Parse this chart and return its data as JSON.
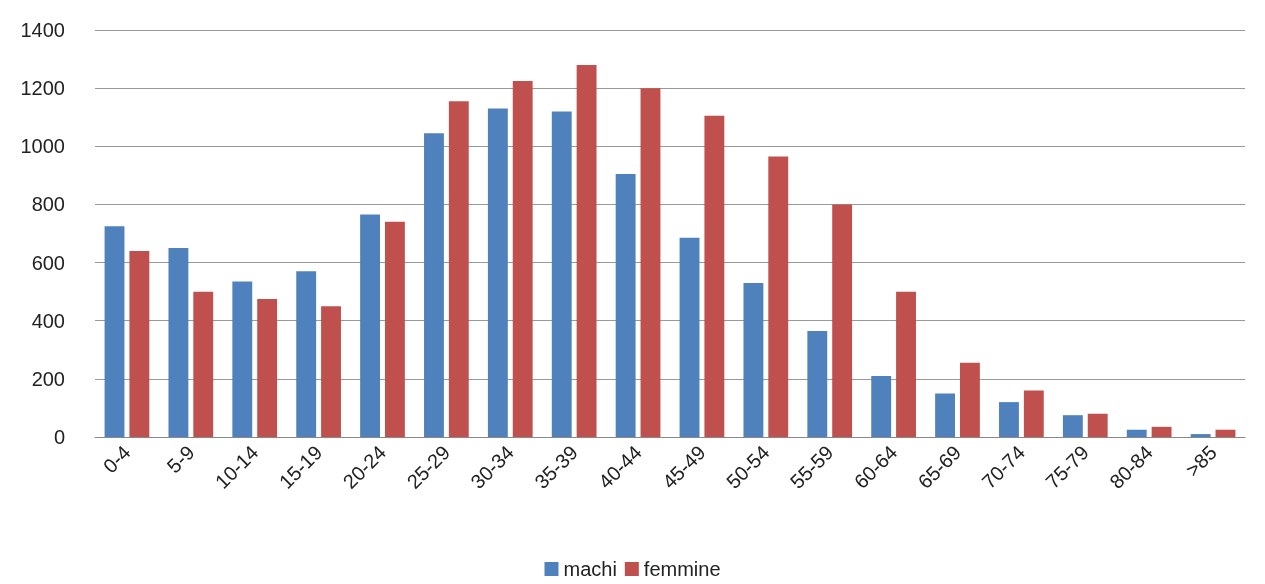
{
  "chart_data": {
    "type": "bar",
    "categories": [
      "0-4",
      "5-9",
      "10-14",
      "15-19",
      "20-24",
      "25-29",
      "30-34",
      "35-39",
      "40-44",
      "45-49",
      "50-54",
      "55-59",
      "60-64",
      "65-69",
      "70-74",
      "75-79",
      "80-84",
      ">85"
    ],
    "series": [
      {
        "name": "machi",
        "color": "#4f81bd",
        "values": [
          725,
          650,
          535,
          570,
          765,
          1045,
          1130,
          1120,
          905,
          685,
          530,
          365,
          210,
          150,
          120,
          75,
          25,
          10
        ]
      },
      {
        "name": "femmine",
        "color": "#c0504d",
        "values": [
          640,
          500,
          475,
          450,
          740,
          1155,
          1225,
          1280,
          1200,
          1105,
          965,
          800,
          500,
          255,
          160,
          80,
          35,
          25
        ]
      }
    ],
    "ylim": [
      0,
      1400
    ],
    "yticks": [
      0,
      200,
      400,
      600,
      800,
      1000,
      1200,
      1400
    ],
    "grid": "y",
    "legend": "bottom"
  }
}
